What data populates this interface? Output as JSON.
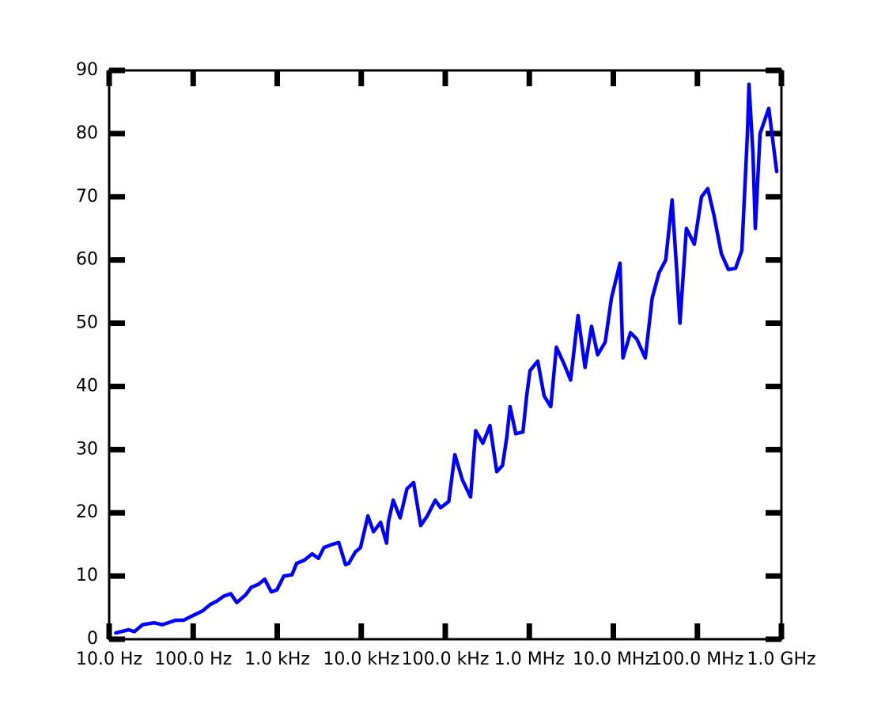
{
  "chart_data": {
    "type": "line",
    "xscale": "log",
    "color": "#0000ff",
    "xlim": [
      10,
      1000000000
    ],
    "xticks": [
      {
        "value": 10,
        "label": "10.0 Hz"
      },
      {
        "value": 100,
        "label": "100.0 Hz"
      },
      {
        "value": 1000,
        "label": "1.0 kHz"
      },
      {
        "value": 10000,
        "label": "10.0 kHz"
      },
      {
        "value": 100000,
        "label": "100.0 kHz"
      },
      {
        "value": 1000000,
        "label": "1.0 MHz"
      },
      {
        "value": 10000000,
        "label": "10.0 MHz"
      },
      {
        "value": 100000000,
        "label": "100.0 MHz"
      },
      {
        "value": 1000000000,
        "label": "1.0 GHz"
      }
    ],
    "ylim": [
      0,
      90
    ],
    "yticks": [
      0,
      10,
      20,
      30,
      40,
      50,
      60,
      70,
      80,
      90
    ],
    "x": [
      12,
      17,
      20,
      25,
      34,
      43,
      62,
      77,
      91,
      130,
      160,
      190,
      230,
      280,
      330,
      420,
      490,
      600,
      710,
      850,
      990,
      1200,
      1500,
      1700,
      2100,
      2600,
      3100,
      3600,
      4500,
      5400,
      6500,
      7100,
      8500,
      9800,
      12000,
      14000,
      17000,
      20000,
      21000,
      24000,
      29000,
      35000,
      42000,
      51000,
      61000,
      76000,
      88000,
      110000,
      130000,
      160000,
      200000,
      230000,
      280000,
      340000,
      410000,
      480000,
      540000,
      590000,
      690000,
      840000,
      930000,
      1020000,
      1260000,
      1500000,
      1800000,
      2100000,
      2600000,
      3100000,
      3800000,
      4600000,
      5500000,
      6500000,
      8000000,
      9500000,
      12000000,
      13000000,
      16000000,
      19000000,
      24000000,
      29000000,
      35000000,
      42000000,
      50000000,
      57000000,
      62000000,
      65000000,
      74000000,
      92000000,
      112000000,
      133000000,
      158000000,
      193000000,
      234000000,
      285000000,
      338000000,
      369000000,
      394000000,
      411000000,
      458000000,
      489000000,
      557000000,
      707000000,
      879000000
    ],
    "values": [
      1.0,
      1.5,
      1.2,
      2.3,
      2.6,
      2.3,
      3.0,
      3.0,
      3.5,
      4.5,
      5.5,
      6.0,
      6.8,
      7.2,
      5.8,
      7.0,
      8.2,
      8.7,
      9.5,
      7.5,
      7.8,
      10.0,
      10.2,
      12.0,
      12.5,
      13.5,
      12.8,
      14.5,
      15.0,
      15.3,
      11.8,
      12.0,
      13.8,
      14.5,
      19.5,
      17.0,
      18.5,
      15.2,
      18.5,
      22.0,
      19.2,
      23.8,
      24.8,
      18.0,
      19.5,
      22.0,
      20.8,
      21.8,
      29.2,
      25.2,
      22.5,
      33.0,
      31.0,
      33.8,
      26.5,
      27.5,
      32.0,
      36.8,
      32.5,
      32.8,
      38.5,
      42.5,
      44.0,
      38.5,
      36.8,
      46.2,
      43.5,
      41.0,
      51.2,
      43.0,
      49.5,
      45.0,
      47.0,
      54.0,
      59.5,
      44.5,
      48.5,
      47.5,
      44.5,
      54.0,
      58.0,
      60.0,
      69.5,
      58.0,
      50.0,
      54.0,
      65.0,
      62.5,
      70.0,
      71.3,
      67.0,
      61.0,
      58.5,
      58.7,
      61.5,
      72.0,
      80.0,
      87.8,
      77.0,
      65.0,
      80.0,
      84.0,
      74.0
    ]
  }
}
